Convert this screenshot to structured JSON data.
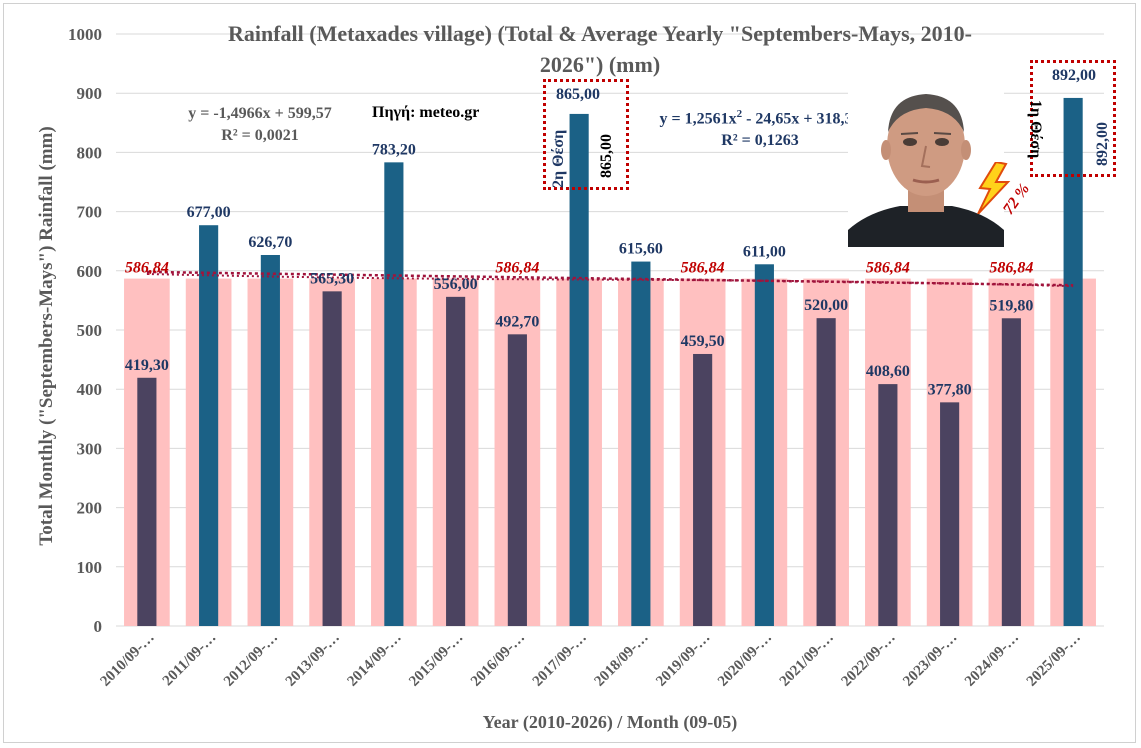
{
  "chart_data": {
    "type": "bar",
    "title": "Rainfall (Metaxades village) (Total & Average Yearly \"Septembers-Mays, 2010-2026\") (mm)",
    "title_line1": "Rainfall (Metaxades village) (Total & Average Yearly \"Septembers-Mays, 2010-",
    "title_line2": "2026\") (mm)",
    "xlabel": "Year (2010-2026) / Month (09-05)",
    "ylabel": "Total Monthly (\"Septembers-Mays\") Rainfall (mm)",
    "ylim": [
      0,
      1000
    ],
    "yticks": [
      0,
      100,
      200,
      300,
      400,
      500,
      600,
      700,
      800,
      900,
      1000
    ],
    "grid": true,
    "categories": [
      "2010/09-…",
      "2011/09-…",
      "2012/09-…",
      "2013/09-…",
      "2014/09-…",
      "2015/09-…",
      "2016/09-…",
      "2017/09-…",
      "2018/09-…",
      "2019/09-…",
      "2020/09-…",
      "2021/09-…",
      "2022/09-…",
      "2023/09-…",
      "2024/09-…",
      "2025/09-…"
    ],
    "series": [
      {
        "kind": "total",
        "values": [
          419.3,
          677.0,
          626.7,
          565.3,
          783.2,
          556.0,
          492.7,
          865.0,
          615.6,
          459.5,
          611.0,
          520.0,
          408.6,
          377.8,
          519.8,
          892.0
        ],
        "labels": [
          "419,30",
          "677,00",
          "626,70",
          "565,30",
          "783,20",
          "556,00",
          "492,70",
          "865,00",
          "615,60",
          "459,50",
          "611,00",
          "520,00",
          "408,60",
          "377,80",
          "519,80",
          "892,00"
        ]
      },
      {
        "kind": "average",
        "values": [
          586.84,
          586.84,
          586.84,
          586.84,
          586.84,
          586.84,
          586.84,
          586.84,
          586.84,
          586.84,
          586.84,
          586.84,
          586.84,
          586.84,
          586.84,
          586.84
        ],
        "labels": [
          "586,84",
          "",
          "",
          "",
          "",
          "",
          "586,84",
          "",
          "",
          "586,84",
          "",
          "",
          "586,84",
          "",
          "586,84",
          ""
        ]
      }
    ],
    "colors": {
      "below_average": "#4b4360",
      "above_average": "#1b6186",
      "average_bar": "#ffc0c0",
      "average_label": "#c00000",
      "trendline": "#a0143c",
      "grid": "#d9d9d9"
    },
    "trendlines": {
      "linear": {
        "equation": "y = -1,4966x + 599,57",
        "r2": "R² = 0,0021"
      },
      "poly": {
        "equation_prefix": "y = 1,2561x",
        "equation_exp": "2",
        "equation_suffix": " - 24,65x + 318,38",
        "r2": "R² = 0,1263"
      }
    },
    "annotations": {
      "source": "Πηγή: meteo.gr",
      "increase_pct": "72 %",
      "rank1_text": "1η Θέση",
      "rank1_value": "892,00",
      "rank2_text": "2η Θέση",
      "rank2_value": "865,00"
    }
  }
}
